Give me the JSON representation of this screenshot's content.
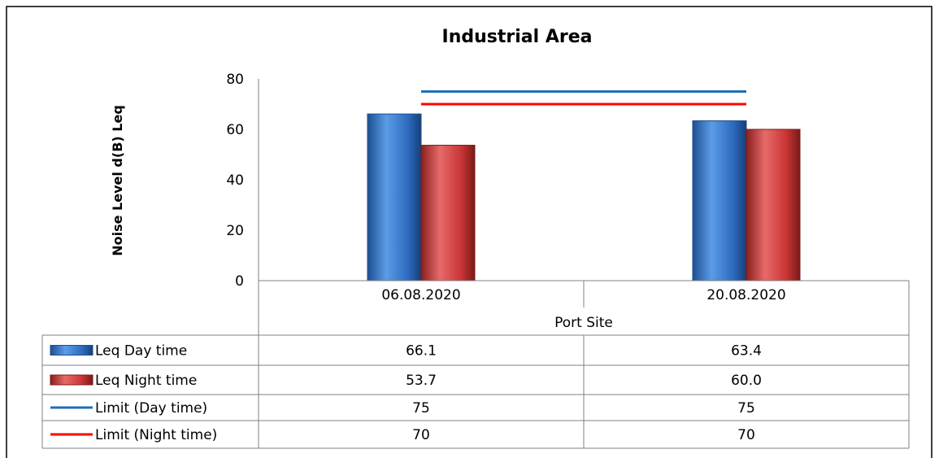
{
  "chart_data": {
    "type": "bar",
    "title": "Industrial Area",
    "ylabel": "Noise Level d(B) Leq",
    "xlabel": "Port Site",
    "categories": [
      "06.08.2020",
      "20.08.2020"
    ],
    "ylim": [
      0,
      80
    ],
    "yticks": [
      "0",
      "20",
      "40",
      "60",
      "80"
    ],
    "grid": false,
    "legend_placement": "data-table",
    "series": [
      {
        "name": "Leq Day time",
        "kind": "bar",
        "color": "#3a78c9",
        "values": [
          66.1,
          63.4
        ],
        "labels": [
          "66.1",
          "63.4"
        ]
      },
      {
        "name": "Leq  Night time",
        "kind": "bar",
        "color": "#cf3b3b",
        "values": [
          53.7,
          60.0
        ],
        "labels": [
          "53.7",
          "60.0"
        ]
      },
      {
        "name": "Limit (Day time)",
        "kind": "line",
        "color": "#1f6fb5",
        "values": [
          75,
          75
        ],
        "labels": [
          "75",
          "75"
        ]
      },
      {
        "name": "Limit (Night time)",
        "kind": "line",
        "color": "#ff0000",
        "values": [
          70,
          70
        ],
        "labels": [
          "70",
          "70"
        ]
      }
    ]
  }
}
